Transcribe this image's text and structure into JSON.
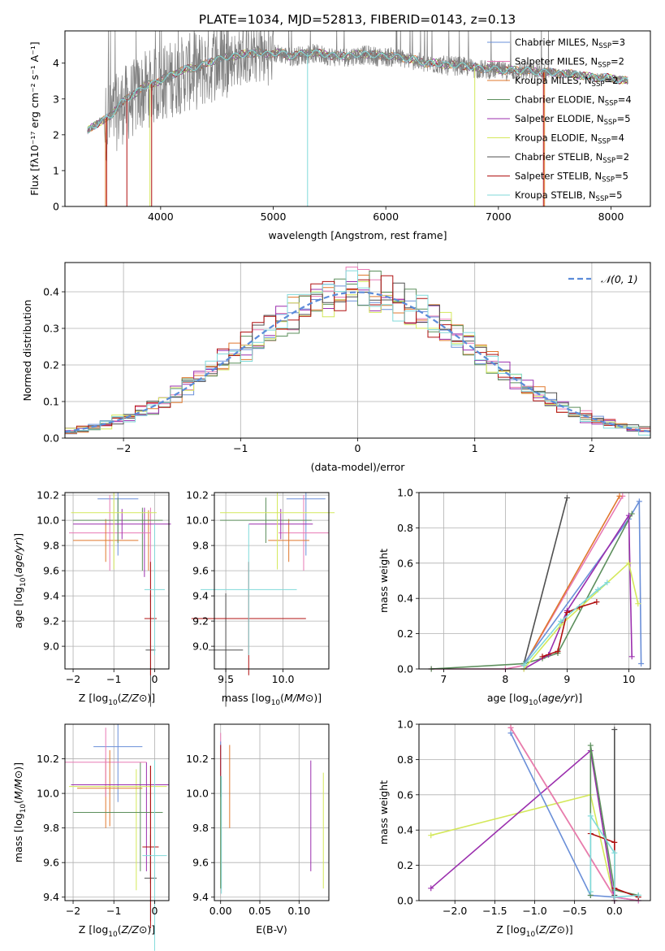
{
  "title": "PLATE=1034, MJD=52813, FIBERID=0143, z=0.13",
  "colors": {
    "cMILES": "#6a8fd8",
    "sMILES": "#e87ab5",
    "kMILES": "#e0782d",
    "cELODIE": "#5c8f5c",
    "sELODIE": "#9b2fae",
    "kELODIE": "#d4e85a",
    "cSTELIB": "#505050",
    "sSTELIB": "#b01010",
    "kSTELIB": "#80dada"
  },
  "chart_data": [
    {
      "id": "spectrum",
      "type": "line",
      "title": "PLATE=1034, MJD=52813, FIBERID=0143, z=0.13",
      "xlabel": "wavelength [Angstrom, rest frame]",
      "ylabel": "Flux [fλ10⁻¹⁷ erg cm⁻² s⁻¹ A⁻¹]",
      "xlim": [
        3150,
        8350
      ],
      "ylim": [
        0,
        4.9
      ],
      "xticks": [
        4000,
        5000,
        6000,
        7000,
        8000
      ],
      "yticks": [
        0,
        1,
        2,
        3,
        4
      ],
      "legend_position": "right",
      "legend": [
        {
          "key": "cMILES",
          "label": "Chabrier MILES, N",
          "sub": "SSP",
          "n": "=3"
        },
        {
          "key": "sMILES",
          "label": "Salpeter MILES, N",
          "sub": "SSP",
          "n": "=2"
        },
        {
          "key": "kMILES",
          "label": "Kroupa MILES, N",
          "sub": "SSP",
          "n": "=2"
        },
        {
          "key": "cELODIE",
          "label": "Chabrier ELODIE, N",
          "sub": "SSP",
          "n": "=4"
        },
        {
          "key": "sELODIE",
          "label": "Salpeter ELODIE, N",
          "sub": "SSP",
          "n": "=5"
        },
        {
          "key": "kELODIE",
          "label": "Kroupa ELODIE, N",
          "sub": "SSP",
          "n": "=4"
        },
        {
          "key": "cSTELIB",
          "label": "Chabrier STELIB, N",
          "sub": "SSP",
          "n": "=2"
        },
        {
          "key": "sSTELIB",
          "label": "Salpeter STELIB, N",
          "sub": "SSP",
          "n": "=5"
        },
        {
          "key": "kSTELIB",
          "label": "Kroupa STELIB, N",
          "sub": "SSP",
          "n": "=5"
        }
      ],
      "continuum": {
        "x": [
          3350,
          3450,
          3550,
          3650,
          3750,
          3850,
          3950,
          4050,
          4150,
          4250,
          4350,
          4450,
          4550,
          4650,
          4750,
          4850,
          4950,
          5050,
          5150,
          5250,
          5350,
          5450,
          5550,
          5650,
          5750,
          5850,
          5950,
          6050,
          6150,
          6250,
          6350,
          6450,
          6550,
          6650,
          6750,
          6850,
          6950,
          7050,
          7150,
          7250,
          7350,
          7450,
          7550,
          7650,
          7750,
          7850,
          7950,
          8050,
          8150
        ],
        "y": [
          2.1,
          2.35,
          2.5,
          2.9,
          3.1,
          3.35,
          3.45,
          3.6,
          3.75,
          3.85,
          3.9,
          4.05,
          4.15,
          4.2,
          4.25,
          4.3,
          4.25,
          4.3,
          4.2,
          4.25,
          4.3,
          4.25,
          4.2,
          4.2,
          4.25,
          4.25,
          4.2,
          4.2,
          4.15,
          4.1,
          4.0,
          4.0,
          3.95,
          3.95,
          3.9,
          3.85,
          3.85,
          3.8,
          3.8,
          3.8,
          3.75,
          3.75,
          3.7,
          3.7,
          3.65,
          3.6,
          3.6,
          3.55,
          3.5
        ]
      },
      "data_extent": [
        3350,
        8150
      ],
      "noisy_range": [
        3500,
        7450
      ],
      "drop_lines": [
        {
          "x": 3510,
          "key": "kMILES"
        },
        {
          "x": 3520,
          "key": "sSTELIB"
        },
        {
          "x": 3700,
          "key": "sSTELIB"
        },
        {
          "x": 3905,
          "key": "kELODIE"
        },
        {
          "x": 3920,
          "key": "sSTELIB"
        },
        {
          "x": 5305,
          "key": "kSTELIB"
        },
        {
          "x": 6790,
          "key": "kELODIE"
        },
        {
          "x": 7400,
          "key": "sSTELIB"
        },
        {
          "x": 7410,
          "key": "kMILES"
        }
      ]
    },
    {
      "id": "residuals",
      "type": "histogram",
      "xlabel": "(data-model)/error",
      "ylabel": "Normed distribution",
      "xlim": [
        -2.5,
        2.5
      ],
      "ylim": [
        0,
        0.48
      ],
      "xticks": [
        -2,
        -1,
        0,
        1,
        2
      ],
      "yticks": [
        0.0,
        0.1,
        0.2,
        0.3,
        0.4
      ],
      "grid": true,
      "legend_label": "𝒩(0, 1)",
      "legend_position": "top-right",
      "bin_width": 0.1,
      "series_order": [
        "cMILES",
        "sMILES",
        "kMILES",
        "cELODIE",
        "sELODIE",
        "kELODIE",
        "cSTELIB",
        "sSTELIB",
        "kSTELIB"
      ]
    },
    {
      "id": "Z-age",
      "type": "scatter",
      "xlabel": "Z [log10(Z/Z⊙)]",
      "ylabel": "age  [log10(age/yr)]",
      "xlim": [
        -2.2,
        0.35
      ],
      "ylim": [
        8.82,
        10.22
      ],
      "xticks": [
        -2,
        -1,
        0
      ],
      "yticks": [
        9.0,
        9.2,
        9.4,
        9.6,
        9.8,
        10.0,
        10.2
      ],
      "grid": true,
      "points": [
        {
          "key": "cMILES",
          "x": -0.9,
          "y": 10.17,
          "xerr": 0.5,
          "yerr": 0.45
        },
        {
          "key": "sMILES",
          "x": -1.1,
          "y": 9.9,
          "xerr": 1.0,
          "yerr": 0.3
        },
        {
          "key": "kMILES",
          "x": -1.2,
          "y": 9.84,
          "xerr": 0.8,
          "yerr": 0.17
        },
        {
          "key": "cELODIE",
          "x": -0.9,
          "y": 10.0,
          "xerr": 1.1,
          "yerr": 0.18
        },
        {
          "key": "sELODIE",
          "x": -0.8,
          "y": 9.97,
          "xerr": 1.2,
          "yerr": 0.12
        },
        {
          "key": "kELODIE",
          "x": -1.0,
          "y": 10.06,
          "xerr": 1.05,
          "yerr": 0.45
        },
        {
          "key": "cSTELIB",
          "x": -0.1,
          "y": 8.97,
          "xerr": 0.12,
          "yerr": 0.45
        },
        {
          "key": "sSTELIB",
          "x": -0.1,
          "y": 9.22,
          "xerr": 0.15,
          "yerr": 0.45
        },
        {
          "key": "kSTELIB",
          "x": 0.0,
          "y": 9.45,
          "xerr": 0.25,
          "yerr": 0.52
        }
      ],
      "vlines": [
        {
          "key": "cELODIE",
          "x": -0.3,
          "y0": 9.6,
          "y1": 10.1
        },
        {
          "key": "sELODIE",
          "x": -0.25,
          "y0": 9.55,
          "y1": 10.1
        },
        {
          "key": "sMILES",
          "x": -0.1,
          "y0": 9.35,
          "y1": 10.1
        },
        {
          "key": "kMILES",
          "x": -0.15,
          "y0": 9.6,
          "y1": 10.08
        }
      ]
    },
    {
      "id": "mass-age",
      "type": "scatter",
      "xlabel": "mass [log10(M/M⊙)]",
      "xlim": [
        9.4,
        10.4
      ],
      "ylim": [
        8.82,
        10.22
      ],
      "xticks": [
        9.5,
        10.0
      ],
      "yticks": [
        9.0,
        9.2,
        9.4,
        9.6,
        9.8,
        10.0,
        10.2
      ],
      "grid": true,
      "points": [
        {
          "key": "cMILES",
          "x": 10.2,
          "y": 10.17,
          "xerr": 0.17,
          "yerr": 0.45
        },
        {
          "key": "sMILES",
          "x": 10.18,
          "y": 9.9,
          "xerr": 0.22,
          "yerr": 0.3
        },
        {
          "key": "kMILES",
          "x": 10.05,
          "y": 9.84,
          "xerr": 0.18,
          "yerr": 0.17
        },
        {
          "key": "cELODIE",
          "x": 9.85,
          "y": 10.0,
          "xerr": 0.4,
          "yerr": 0.18
        },
        {
          "key": "sELODIE",
          "x": 9.98,
          "y": 9.97,
          "xerr": 0.28,
          "yerr": 0.12
        },
        {
          "key": "kELODIE",
          "x": 9.95,
          "y": 10.06,
          "xerr": 0.5,
          "yerr": 0.45
        },
        {
          "key": "cSTELIB",
          "x": 9.5,
          "y": 8.97,
          "xerr": 0.15,
          "yerr": 0.45
        },
        {
          "key": "sSTELIB",
          "x": 9.7,
          "y": 9.22,
          "xerr": 0.5,
          "yerr": 0.45
        },
        {
          "key": "kSTELIB",
          "x": 9.7,
          "y": 9.45,
          "xerr": 0.42,
          "yerr": 0.52
        }
      ]
    },
    {
      "id": "age-weight",
      "type": "line",
      "xlabel": "age  [log10(age/yr)]",
      "ylabel": "mass weight",
      "xlim": [
        6.6,
        10.35
      ],
      "ylim": [
        0,
        1
      ],
      "xticks": [
        7,
        8,
        9,
        10
      ],
      "yticks": [
        0.0,
        0.2,
        0.4,
        0.6,
        0.8,
        1.0
      ],
      "grid": true,
      "series": [
        {
          "key": "sMILES",
          "x": [
            6.8,
            8.0,
            8.3,
            9.9
          ],
          "y": [
            0.0,
            0.0,
            0.02,
            0.98
          ]
        },
        {
          "key": "kMILES",
          "x": [
            8.3,
            9.85
          ],
          "y": [
            0.02,
            0.98
          ]
        },
        {
          "key": "cSTELIB",
          "x": [
            8.3,
            9.0
          ],
          "y": [
            0.03,
            0.97
          ]
        },
        {
          "key": "cMILES",
          "x": [
            8.3,
            10.0,
            10.17,
            10.2
          ],
          "y": [
            0.03,
            0.85,
            0.95,
            0.03
          ]
        },
        {
          "key": "cELODIE",
          "x": [
            6.8,
            8.3,
            8.6,
            8.85,
            10.05
          ],
          "y": [
            0.0,
            0.03,
            0.06,
            0.09,
            0.88
          ]
        },
        {
          "key": "sELODIE",
          "x": [
            8.3,
            8.7,
            9.0,
            10.0,
            10.05
          ],
          "y": [
            0.0,
            0.08,
            0.33,
            0.87,
            0.07
          ]
        },
        {
          "key": "kELODIE",
          "x": [
            8.3,
            8.9,
            10.0,
            10.15
          ],
          "y": [
            0.0,
            0.25,
            0.6,
            0.37
          ]
        },
        {
          "key": "sSTELIB",
          "x": [
            8.6,
            8.85,
            9.0,
            9.2,
            9.48
          ],
          "y": [
            0.07,
            0.1,
            0.32,
            0.35,
            0.38
          ]
        },
        {
          "key": "kSTELIB",
          "x": [
            8.3,
            8.9,
            9.5,
            9.65
          ],
          "y": [
            0.02,
            0.27,
            0.45,
            0.49
          ]
        }
      ]
    },
    {
      "id": "Z-mass",
      "type": "scatter",
      "xlabel": "Z [log10(Z/Z⊙)]",
      "ylabel": "mass [log10(M/M⊙)]",
      "xlim": [
        -2.2,
        0.35
      ],
      "ylim": [
        9.38,
        10.4
      ],
      "xticks": [
        -2,
        -1,
        0
      ],
      "yticks": [
        9.4,
        9.6,
        9.8,
        10.0,
        10.2
      ],
      "grid": true,
      "points": [
        {
          "key": "cMILES",
          "x": -0.9,
          "y": 10.27,
          "xerr": 0.6,
          "yerr": 0.32
        },
        {
          "key": "sMILES",
          "x": -1.2,
          "y": 10.18,
          "xerr": 1.0,
          "yerr": 0.2
        },
        {
          "key": "kMILES",
          "x": -1.1,
          "y": 10.03,
          "xerr": 0.8,
          "yerr": 0.22
        },
        {
          "key": "cELODIE",
          "x": -0.9,
          "y": 9.89,
          "xerr": 1.1,
          "yerr": 0.0
        },
        {
          "key": "sELODIE",
          "x": -0.85,
          "y": 10.05,
          "xerr": 1.2,
          "yerr": 0.0
        },
        {
          "key": "kELODIE",
          "x": -0.9,
          "y": 10.04,
          "xerr": 1.2,
          "yerr": 0.0
        },
        {
          "key": "cSTELIB",
          "x": -0.1,
          "y": 9.51,
          "xerr": 0.15,
          "yerr": 0.25
        },
        {
          "key": "sSTELIB",
          "x": -0.1,
          "y": 9.69,
          "xerr": 0.2,
          "yerr": 0.47
        },
        {
          "key": "kSTELIB",
          "x": 0.0,
          "y": 9.64,
          "xerr": 0.3,
          "yerr": 0.55
        }
      ],
      "vlines": [
        {
          "key": "kELODIE",
          "x": -0.45,
          "y0": 9.44,
          "y1": 10.14
        },
        {
          "key": "cELODIE",
          "x": -0.35,
          "y0": 9.55,
          "y1": 10.18
        },
        {
          "key": "sELODIE",
          "x": -0.2,
          "y0": 9.55,
          "y1": 10.18
        },
        {
          "key": "sSTELIB",
          "x": -0.1,
          "y0": 9.48,
          "y1": 10.16
        },
        {
          "key": "kMILES",
          "x": -1.2,
          "y0": 9.8,
          "y1": 10.2
        }
      ]
    },
    {
      "id": "ebv-mass",
      "type": "scatter",
      "xlabel": "E(B-V)",
      "xlim": [
        -0.008,
        0.138
      ],
      "ylim": [
        9.38,
        10.4
      ],
      "xticks": [
        0.0,
        0.05,
        0.1
      ],
      "xticklabels": [
        "0.00",
        "0.05",
        "0.10"
      ],
      "yticks": [
        9.4,
        9.6,
        9.8,
        10.0,
        10.2
      ],
      "grid": true,
      "vlines": [
        {
          "key": "sMILES",
          "x": 0.0,
          "y0": 10.0,
          "y1": 10.35
        },
        {
          "key": "cMILES",
          "x": 0.0,
          "y0": 9.98,
          "y1": 10.3
        },
        {
          "key": "sSTELIB",
          "x": 0.0,
          "y0": 10.1,
          "y1": 10.28
        },
        {
          "key": "kSTELIB",
          "x": 0.001,
          "y0": 9.42,
          "y1": 10.1
        },
        {
          "key": "cELODIE",
          "x": 0.0,
          "y0": 9.45,
          "y1": 10.1
        },
        {
          "key": "kMILES",
          "x": 0.0115,
          "y0": 9.8,
          "y1": 10.28
        },
        {
          "key": "sELODIE",
          "x": 0.115,
          "y0": 9.55,
          "y1": 10.19
        },
        {
          "key": "kELODIE",
          "x": 0.131,
          "y0": 9.45,
          "y1": 10.12
        }
      ]
    },
    {
      "id": "Z-weight",
      "type": "line",
      "xlabel": "Z [log10(Z/Z⊙)]",
      "ylabel": "mass weight",
      "xlim": [
        -2.45,
        0.45
      ],
      "ylim": [
        0,
        1
      ],
      "xticks": [
        -2.0,
        -1.5,
        -1.0,
        -0.5,
        0.0
      ],
      "xticklabels": [
        "−2.0",
        "−1.5",
        "−1.0",
        "−0.5",
        "0.0"
      ],
      "yticks": [
        0.0,
        0.2,
        0.4,
        0.6,
        0.8,
        1.0
      ],
      "grid": true,
      "series": [
        {
          "key": "kELODIE",
          "x": [
            -2.3,
            -0.3,
            0.0
          ],
          "y": [
            0.37,
            0.6,
            0.0
          ]
        },
        {
          "key": "sELODIE",
          "x": [
            -2.3,
            -0.3,
            0.0
          ],
          "y": [
            0.07,
            0.85,
            0.0
          ]
        },
        {
          "key": "cMILES",
          "x": [
            -1.3,
            -0.3,
            0.0,
            0.3
          ],
          "y": [
            0.95,
            0.03,
            0.02,
            0.0
          ]
        },
        {
          "key": "kMILES",
          "x": [
            -1.3,
            0.0
          ],
          "y": [
            0.98,
            0.02
          ]
        },
        {
          "key": "sMILES",
          "x": [
            -1.3,
            0.0,
            0.3
          ],
          "y": [
            0.98,
            0.02,
            0.0
          ]
        },
        {
          "key": "cELODIE",
          "x": [
            -0.3,
            -0.3,
            0.0,
            0.3
          ],
          "y": [
            0.03,
            0.88,
            0.06,
            0.03
          ]
        },
        {
          "key": "cSTELIB",
          "x": [
            0.0,
            0.0
          ],
          "y": [
            0.97,
            0.03
          ]
        },
        {
          "key": "sSTELIB",
          "x": [
            -0.3,
            0.0,
            0.0,
            0.3
          ],
          "y": [
            0.38,
            0.33,
            0.07,
            0.02
          ]
        },
        {
          "key": "kSTELIB",
          "x": [
            -0.3,
            -0.3,
            0.0,
            0.0,
            0.3
          ],
          "y": [
            0.05,
            0.48,
            0.27,
            0.02,
            0.03
          ]
        }
      ]
    }
  ]
}
